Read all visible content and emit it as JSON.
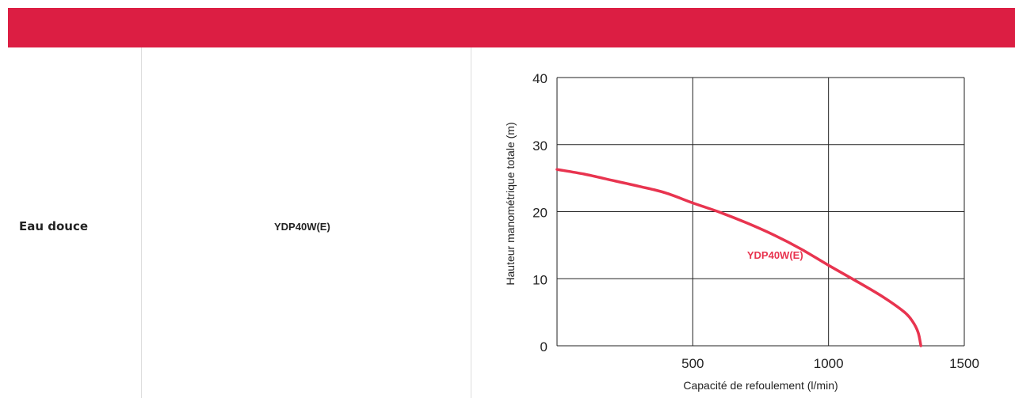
{
  "colors": {
    "header": "#DC1E43",
    "curve": "#E8344F",
    "grid": "#222222"
  },
  "table": {
    "water_type": "Eau douce",
    "model": "YDP40W(E)"
  },
  "chart_data": {
    "type": "line",
    "title": "",
    "xlabel": "Capacité de refoulement (l/min)",
    "ylabel": "Hauteur manométrique totale (m)",
    "xlim": [
      0,
      1500
    ],
    "ylim": [
      0,
      40
    ],
    "x_ticks": [
      500,
      1000,
      1500
    ],
    "y_ticks": [
      0,
      10,
      20,
      30,
      40
    ],
    "x_tick_labels": [
      "500",
      "1000",
      "1500"
    ],
    "y_tick_labels": [
      "0",
      "10",
      "20",
      "30",
      "40"
    ],
    "grid": true,
    "series": [
      {
        "name": "YDP40W(E)",
        "x": [
          0,
          100,
          200,
          300,
          400,
          500,
          600,
          700,
          800,
          900,
          1000,
          1100,
          1200,
          1280,
          1310,
          1330,
          1340
        ],
        "y": [
          26.3,
          25.6,
          24.7,
          23.8,
          22.8,
          21.3,
          19.9,
          18.3,
          16.5,
          14.4,
          12.0,
          9.7,
          7.3,
          5.0,
          3.6,
          2.0,
          0
        ]
      }
    ]
  }
}
